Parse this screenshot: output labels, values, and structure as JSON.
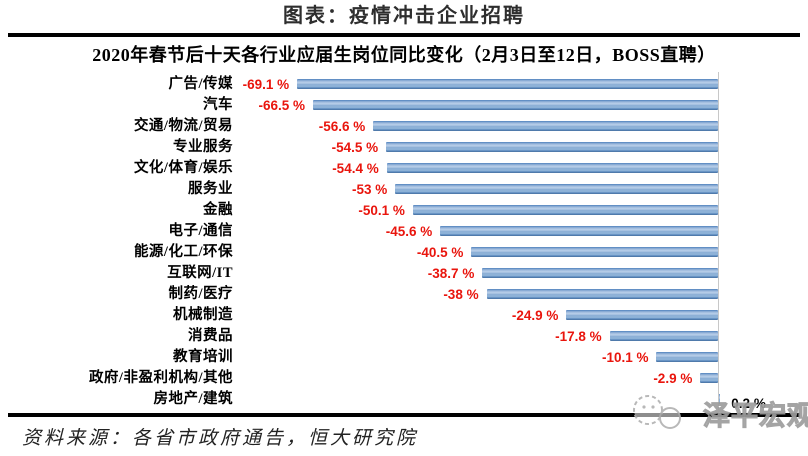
{
  "header": {
    "title": "图表：疫情冲击企业招聘"
  },
  "chart_data": {
    "type": "bar",
    "orientation": "horizontal",
    "title": "2020年春节后十天各行业应届生岗位同比变化（2月3日至12日，BOSS直聘）",
    "unit": "%",
    "categories": [
      "广告/传媒",
      "汽车",
      "交通/物流/贸易",
      "专业服务",
      "文化/体育/娱乐",
      "服务业",
      "金融",
      "电子/通信",
      "能源/化工/环保",
      "互联网/IT",
      "制药/医疗",
      "机械制造",
      "消费品",
      "教育培训",
      "政府/非盈利机构/其他",
      "房地产/建筑"
    ],
    "values": [
      -69.1,
      -66.5,
      -56.6,
      -54.5,
      -54.4,
      -53,
      -50.1,
      -45.6,
      -40.5,
      -38.7,
      -38,
      -24.9,
      -17.8,
      -10.1,
      -2.9,
      0.2
    ],
    "value_labels": [
      "-69.1 %",
      "-66.5 %",
      "-56.6 %",
      "-54.5 %",
      "-54.4 %",
      "-53 %",
      "-50.1 %",
      "-45.6 %",
      "-40.5 %",
      "-38.7 %",
      "-38 %",
      "-24.9 %",
      "-17.8 %",
      "-10.1 %",
      "-2.9 %",
      "0.2 %"
    ],
    "xlim": [
      -78,
      5
    ],
    "grid": false,
    "legend": false,
    "bar_color_hex": "#6f9bc7",
    "negative_label_color": "#e9150d",
    "positive_label_color": "#000000",
    "axis_line_color": "#c8c8c8"
  },
  "footer": {
    "source": "资料来源：各省市政府通告，恒大研究院"
  },
  "watermark": {
    "text": "泽平宏观",
    "icon": "chat-bubbles-logo"
  }
}
